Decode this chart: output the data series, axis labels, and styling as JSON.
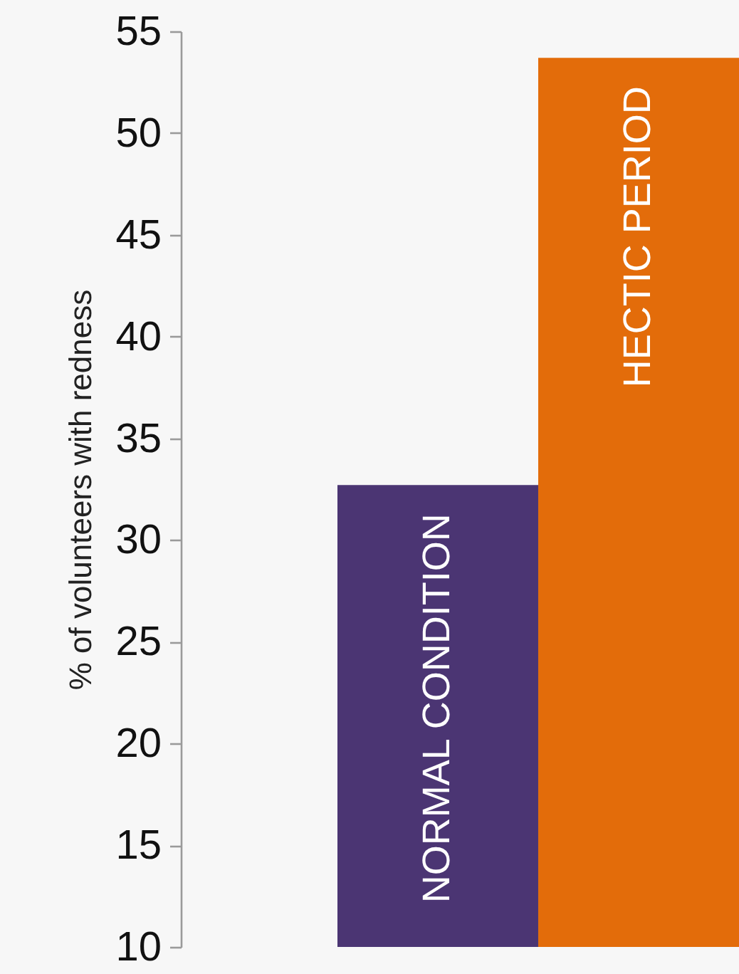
{
  "chart_data": {
    "type": "bar",
    "ylabel": "% of volunteers with redness",
    "categories": [
      "NORMAL CONDITION",
      "HECTIC PERIOD"
    ],
    "values": [
      32.7,
      53.7
    ],
    "colors": [
      "#4b3573",
      "#e36c0a"
    ],
    "ylim": [
      10,
      55
    ],
    "yticks": [
      10,
      15,
      20,
      25,
      30,
      35,
      40,
      45,
      50,
      55
    ],
    "grid": false,
    "legend": false
  }
}
